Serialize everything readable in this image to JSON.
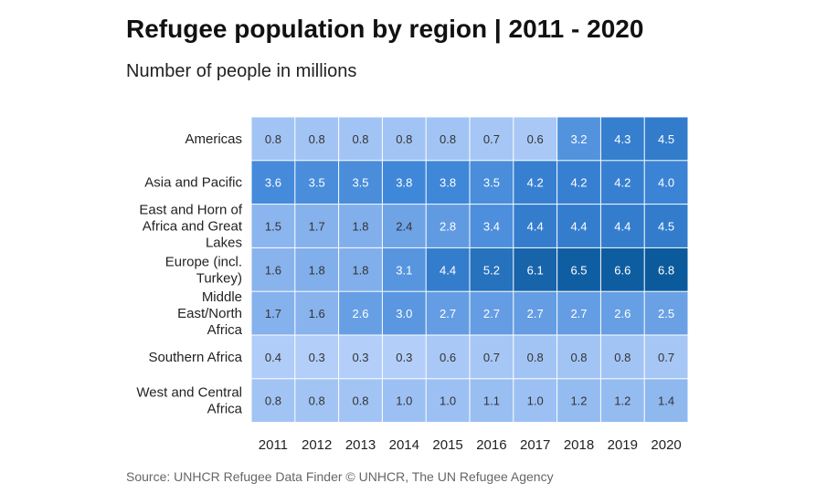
{
  "title": "Refugee population by region | 2011 - 2020",
  "subtitle": "Number of people in millions",
  "source": "Source: UNHCR Refugee Data Finder © UNHCR, The UN Refugee Agency",
  "colors": {
    "low": "#b3cef9",
    "mid": "#3d85d8",
    "high": "#0b5a9c",
    "text_dark": "#333333",
    "text_light": "#ffffff",
    "grid": "#ffffff"
  },
  "chart_data": {
    "type": "heatmap",
    "title": "Refugee population by region | 2011 - 2020",
    "subtitle": "Number of people in millions",
    "columns": [
      "2011",
      "2012",
      "2013",
      "2014",
      "2015",
      "2016",
      "2017",
      "2018",
      "2019",
      "2020"
    ],
    "rows": [
      {
        "label": [
          "Americas"
        ],
        "values": [
          0.8,
          0.8,
          0.8,
          0.8,
          0.8,
          0.7,
          0.6,
          3.2,
          4.3,
          4.5
        ]
      },
      {
        "label": [
          "Asia and Pacific"
        ],
        "values": [
          3.6,
          3.5,
          3.5,
          3.8,
          3.8,
          3.5,
          4.2,
          4.2,
          4.2,
          4.0
        ]
      },
      {
        "label": [
          "East and Horn of",
          "Africa and Great",
          "Lakes"
        ],
        "values": [
          1.5,
          1.7,
          1.8,
          2.4,
          2.8,
          3.4,
          4.4,
          4.4,
          4.4,
          4.5
        ]
      },
      {
        "label": [
          "Europe (incl.",
          "Turkey)"
        ],
        "values": [
          1.6,
          1.8,
          1.8,
          3.1,
          4.4,
          5.2,
          6.1,
          6.5,
          6.6,
          6.8
        ]
      },
      {
        "label": [
          "Middle",
          "East/North",
          "Africa"
        ],
        "values": [
          1.7,
          1.6,
          2.6,
          3.0,
          2.7,
          2.7,
          2.7,
          2.7,
          2.6,
          2.5
        ]
      },
      {
        "label": [
          "Southern Africa"
        ],
        "values": [
          0.4,
          0.3,
          0.3,
          0.3,
          0.6,
          0.7,
          0.8,
          0.8,
          0.8,
          0.7
        ]
      },
      {
        "label": [
          "West and Central",
          "Africa"
        ],
        "values": [
          0.8,
          0.8,
          0.8,
          1.0,
          1.0,
          1.1,
          1.0,
          1.2,
          1.2,
          1.4
        ]
      }
    ],
    "value_format": "one decimal",
    "grid": true,
    "legend": "none"
  }
}
